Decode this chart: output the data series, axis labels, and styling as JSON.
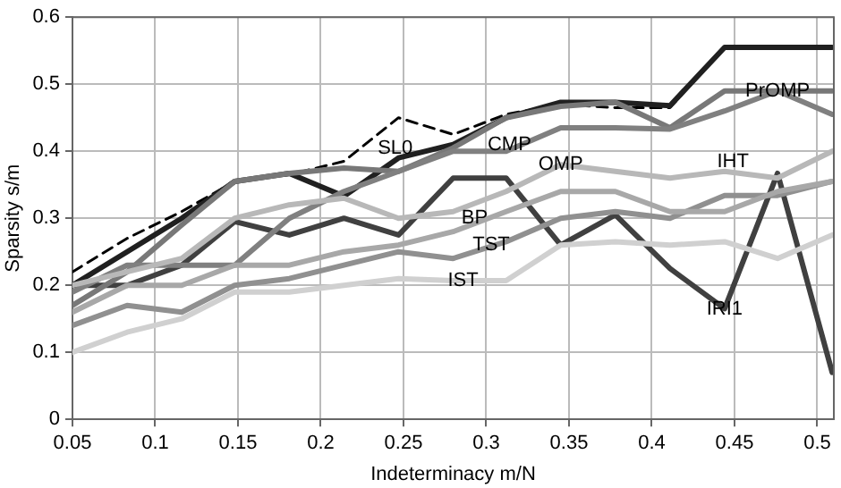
{
  "chart_data": {
    "type": "line",
    "xlabel": "Indeterminacy m/N",
    "ylabel": "Sparsity s/m",
    "x": [
      0.05,
      0.083,
      0.116,
      0.148,
      0.181,
      0.214,
      0.247,
      0.28,
      0.312,
      0.345,
      0.378,
      0.411,
      0.444,
      0.476,
      0.509
    ],
    "xlim": [
      0.05,
      0.51
    ],
    "xticks": [
      0.05,
      0.1,
      0.15,
      0.2,
      0.25,
      0.3,
      0.35,
      0.4,
      0.45,
      0.5
    ],
    "ylim": [
      0,
      0.6
    ],
    "yticks": [
      0,
      0.1,
      0.2,
      0.3,
      0.4,
      0.5,
      0.6
    ],
    "grid": true,
    "legend": false,
    "marker": "none",
    "series": [
      {
        "color": "#b8b8b8",
        "values": [
          0.2,
          0.22,
          0.24,
          0.3,
          0.32,
          0.33,
          0.3,
          0.31,
          0.34,
          0.38,
          0.37,
          0.36,
          0.37,
          0.36,
          0.4
        ]
      },
      {
        "color": "#d0d0d0",
        "values": [
          0.1,
          0.13,
          0.15,
          0.19,
          0.19,
          0.2,
          0.21,
          0.207,
          0.207,
          0.26,
          0.265,
          0.26,
          0.265,
          0.24,
          0.275
        ]
      },
      {
        "color": "#a8a8a8",
        "values": [
          0.16,
          0.2,
          0.2,
          0.23,
          0.23,
          0.25,
          0.26,
          0.28,
          0.31,
          0.34,
          0.34,
          0.31,
          0.31,
          0.34,
          0.355
        ]
      },
      {
        "color": "#909090",
        "values": [
          0.14,
          0.17,
          0.16,
          0.2,
          0.21,
          0.23,
          0.25,
          0.24,
          0.265,
          0.3,
          0.31,
          0.3,
          0.334,
          0.334,
          0.355
        ]
      },
      {
        "color": "#808080",
        "values": [
          0.19,
          0.23,
          0.23,
          0.23,
          0.3,
          0.34,
          0.37,
          0.4,
          0.4,
          0.435,
          0.435,
          0.433,
          0.46,
          0.49,
          0.455
        ]
      },
      {
        "color": "#787878",
        "values": [
          0.17,
          0.22,
          0.29,
          0.355,
          0.367,
          0.375,
          0.37,
          0.405,
          0.45,
          0.467,
          0.473,
          0.435,
          0.49,
          0.49,
          0.49
        ]
      },
      {
        "color": "#404040",
        "values": [
          0.2,
          0.2,
          0.23,
          0.295,
          0.275,
          0.3,
          0.275,
          0.36,
          0.36,
          0.26,
          0.305,
          0.225,
          0.165,
          0.367,
          0.07
        ]
      },
      {
        "color": "#202020",
        "values": [
          0.2,
          0.25,
          0.3,
          0.355,
          0.367,
          0.333,
          0.39,
          0.41,
          0.45,
          0.473,
          0.473,
          0.468,
          0.555,
          0.555,
          0.555
        ]
      },
      {
        "color": "#000000",
        "line_style": "dashed",
        "values": [
          0.22,
          0.27,
          0.31,
          0.355,
          0.365,
          0.385,
          0.45,
          0.425,
          0.455,
          0.47,
          0.465,
          0.465,
          0.555,
          0.555,
          0.555
        ]
      }
    ],
    "annotations": [
      {
        "text": "SL0",
        "x": 0.245,
        "y": 0.405
      },
      {
        "text": "CMP",
        "x": 0.314,
        "y": 0.41
      },
      {
        "text": "OMP",
        "x": 0.345,
        "y": 0.38
      },
      {
        "text": "PrOMP",
        "x": 0.476,
        "y": 0.49
      },
      {
        "text": "IHT",
        "x": 0.449,
        "y": 0.385
      },
      {
        "text": "BP",
        "x": 0.293,
        "y": 0.3
      },
      {
        "text": "TST",
        "x": 0.303,
        "y": 0.26
      },
      {
        "text": "IST",
        "x": 0.286,
        "y": 0.207
      },
      {
        "text": "IRI1",
        "x": 0.444,
        "y": 0.165
      }
    ]
  }
}
